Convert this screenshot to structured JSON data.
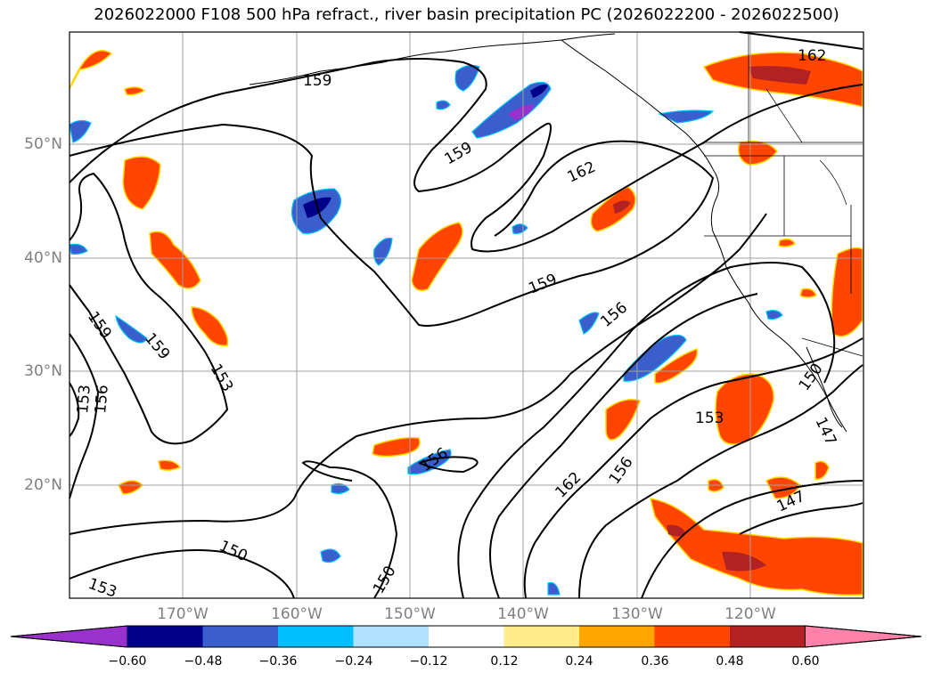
{
  "title": "2026022000 F108 500 hPa refract., river basin precipitation PC (2026022200 - 2026022500)",
  "map": {
    "lat_labels": [
      "50°N",
      "40°N",
      "30°N",
      "20°N"
    ],
    "lon_labels": [
      "170°W",
      "160°W",
      "150°W",
      "140°W",
      "130°W",
      "120°W"
    ],
    "contour_labels": [
      {
        "text": "162"
      },
      {
        "text": "159"
      },
      {
        "text": "159"
      },
      {
        "text": "162"
      },
      {
        "text": "159"
      },
      {
        "text": "156"
      },
      {
        "text": "159"
      },
      {
        "text": "159"
      },
      {
        "text": "153"
      },
      {
        "text": "153"
      },
      {
        "text": "156"
      },
      {
        "text": "153"
      },
      {
        "text": "150"
      },
      {
        "text": "147"
      },
      {
        "text": "156"
      },
      {
        "text": "162"
      },
      {
        "text": "156"
      },
      {
        "text": "147"
      },
      {
        "text": "150"
      },
      {
        "text": "153"
      },
      {
        "text": "150"
      }
    ]
  },
  "colorbar": {
    "colors": [
      "#9932cc",
      "#00008b",
      "#3a5fcd",
      "#00bfff",
      "#b0e2ff",
      "#ffffff",
      "#ffec8b",
      "#ffa500",
      "#ff4500",
      "#b22222",
      "#ff82ab"
    ],
    "labels": [
      "−0.60",
      "−0.48",
      "−0.36",
      "−0.24",
      "−0.12",
      "0.12",
      "0.24",
      "0.36",
      "0.48",
      "0.60"
    ]
  }
}
